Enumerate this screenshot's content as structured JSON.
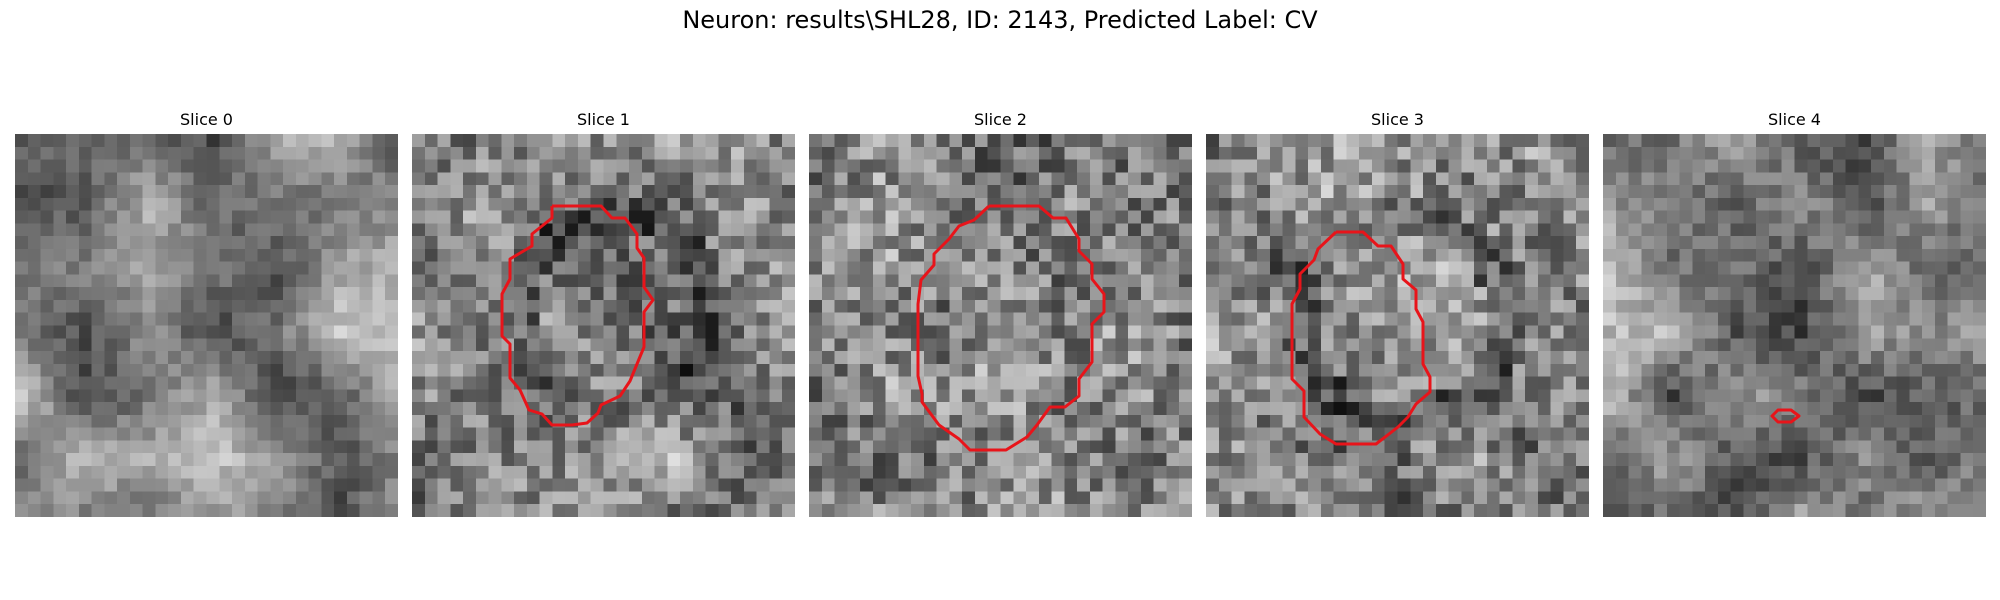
{
  "figure": {
    "title": "Neuron: results\\SHL28, ID: 2143, Predicted Label: CV"
  },
  "panels": [
    {
      "title": "Slice 0",
      "has_contour": false
    },
    {
      "title": "Slice 1",
      "has_contour": true
    },
    {
      "title": "Slice 2",
      "has_contour": true
    },
    {
      "title": "Slice 3",
      "has_contour": true
    },
    {
      "title": "Slice 4",
      "has_contour": true
    }
  ],
  "colors": {
    "contour": "#e8141a",
    "background": "#ffffff"
  },
  "image": {
    "colormap": "gray",
    "grid_size": 30
  }
}
